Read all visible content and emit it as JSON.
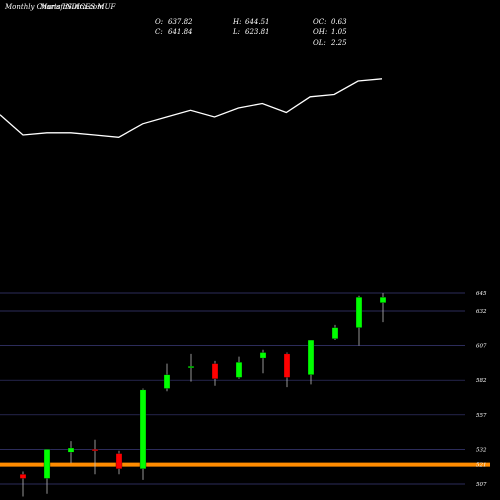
{
  "header": {
    "brand": "MunafaSutra.com",
    "title": "Monthly Charts INDICES MUF",
    "ohlc": {
      "O": "637.82",
      "H": "644.51",
      "OC": "0.63",
      "C": "641.84",
      "L": "623.81",
      "OH": "1.05",
      "OL": "2.25"
    },
    "labels": {
      "O": "O:",
      "H": "H:",
      "OC": "OC:",
      "C": "C:",
      "L": "L:",
      "OH": "OH:",
      "OL": "OL:"
    }
  },
  "colors": {
    "background": "#000000",
    "up": "#00ff00",
    "down": "#ff0000",
    "line": "#ffffff",
    "grid": "#3a3a78",
    "highlight": "#ff8c00"
  },
  "chart_data": {
    "type": "candlestick",
    "y_ticks": [
      645,
      632,
      607,
      582,
      557,
      532,
      521,
      507
    ],
    "y_tick_labels": [
      "645",
      "632",
      "607",
      "582",
      "557",
      "532",
      "521",
      "507"
    ],
    "highlight_level": 521,
    "candles": [
      {
        "o": 514,
        "h": 516,
        "l": 498,
        "c": 511
      },
      {
        "o": 511,
        "h": 532,
        "l": 500,
        "c": 532
      },
      {
        "o": 530,
        "h": 538,
        "l": 522,
        "c": 533
      },
      {
        "o": 532,
        "h": 539,
        "l": 514,
        "c": 531
      },
      {
        "o": 529,
        "h": 531,
        "l": 514,
        "c": 518
      },
      {
        "o": 518,
        "h": 576,
        "l": 510,
        "c": 575
      },
      {
        "o": 576,
        "h": 594,
        "l": 574,
        "c": 586
      },
      {
        "o": 591,
        "h": 601,
        "l": 581,
        "c": 592
      },
      {
        "o": 594,
        "h": 596,
        "l": 578,
        "c": 583
      },
      {
        "o": 584,
        "h": 599,
        "l": 583,
        "c": 595
      },
      {
        "o": 598,
        "h": 604,
        "l": 587,
        "c": 602
      },
      {
        "o": 601,
        "h": 602,
        "l": 577,
        "c": 584
      },
      {
        "o": 586,
        "h": 611,
        "l": 579,
        "c": 611
      },
      {
        "o": 612,
        "h": 622,
        "l": 611,
        "c": 620
      },
      {
        "o": 620,
        "h": 643,
        "l": 607,
        "c": 642
      },
      {
        "o": 638,
        "h": 645,
        "l": 624,
        "c": 642
      }
    ],
    "line_values": [
      69,
      60,
      61,
      61,
      60,
      59,
      65,
      68,
      71,
      68,
      72,
      74,
      70,
      77,
      78,
      84,
      85
    ]
  }
}
